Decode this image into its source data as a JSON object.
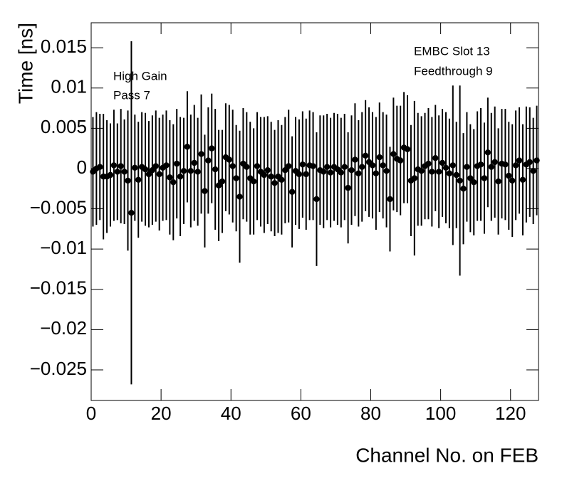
{
  "chart_data": {
    "type": "errorbar",
    "annotations": [
      "EMBC Slot 13",
      "Feedthrough 9",
      "High Gain",
      "Pass 7"
    ],
    "x_label": "Channel No. on FEB",
    "y_label": "Time [ns]",
    "x": [
      0.5,
      1.5,
      2.5,
      3.5,
      4.5,
      5.5,
      6.5,
      7.5,
      8.5,
      9.5,
      10.5,
      11.5,
      12.5,
      13.5,
      14.5,
      15.5,
      16.5,
      17.5,
      18.5,
      19.5,
      20.5,
      21.5,
      22.5,
      23.5,
      24.5,
      25.5,
      26.5,
      27.5,
      28.5,
      29.5,
      30.5,
      31.5,
      32.5,
      33.5,
      34.5,
      35.5,
      36.5,
      37.5,
      38.5,
      39.5,
      40.5,
      41.5,
      42.5,
      43.5,
      44.5,
      45.5,
      46.5,
      47.5,
      48.5,
      49.5,
      50.5,
      51.5,
      52.5,
      53.5,
      54.5,
      55.5,
      56.5,
      57.5,
      58.5,
      59.5,
      60.5,
      61.5,
      62.5,
      63.5,
      64.5,
      65.5,
      66.5,
      67.5,
      68.5,
      69.5,
      70.5,
      71.5,
      72.5,
      73.5,
      74.5,
      75.5,
      76.5,
      77.5,
      78.5,
      79.5,
      80.5,
      81.5,
      82.5,
      83.5,
      84.5,
      85.5,
      86.5,
      87.5,
      88.5,
      89.5,
      90.5,
      91.5,
      92.5,
      93.5,
      94.5,
      95.5,
      96.5,
      97.5,
      98.5,
      99.5,
      100.5,
      101.5,
      102.5,
      103.5,
      104.5,
      105.5,
      106.5,
      107.5,
      108.5,
      109.5,
      110.5,
      111.5,
      112.5,
      113.5,
      114.5,
      115.5,
      116.5,
      117.5,
      118.5,
      119.5,
      120.5,
      121.5,
      122.5,
      123.5,
      124.5,
      125.5,
      126.5,
      127.5
    ],
    "values": [
      -0.0004,
      0.0,
      0.0002,
      -0.001,
      -0.001,
      -0.0008,
      0.0004,
      -0.0004,
      0.0003,
      -0.0004,
      -0.0015,
      -0.0055,
      0.0001,
      -0.0014,
      0.0002,
      -0.0001,
      -0.0007,
      -0.0002,
      0.0003,
      -0.0007,
      0.0001,
      0.0004,
      -0.0011,
      -0.0017,
      0.0006,
      -0.001,
      -0.0003,
      0.0027,
      -0.0003,
      0.0007,
      -0.0004,
      0.0018,
      -0.0028,
      0.001,
      0.0025,
      -0.0001,
      -0.0021,
      -0.0016,
      0.0014,
      0.0011,
      0.0003,
      -0.0012,
      -0.0035,
      0.0006,
      0.0002,
      -0.0012,
      -0.0016,
      0.0003,
      -0.0004,
      -0.0008,
      -0.0002,
      -0.001,
      -0.0018,
      -0.001,
      -0.0014,
      -0.0002,
      0.0003,
      -0.0029,
      -0.0003,
      -0.0007,
      0.0005,
      -0.0007,
      0.0004,
      0.0003,
      -0.0038,
      -0.0002,
      -0.0004,
      0.0002,
      -0.0005,
      0.0002,
      -0.0001,
      -0.0005,
      0.0002,
      -0.0024,
      -0.0002,
      0.0011,
      -0.0006,
      0.0002,
      0.0016,
      0.0008,
      0.0004,
      -0.0006,
      0.0014,
      0.0004,
      -0.0003,
      -0.0038,
      0.0018,
      0.0012,
      0.001,
      0.0026,
      0.0024,
      -0.0015,
      -0.0012,
      -0.0001,
      -0.0003,
      0.0003,
      0.0006,
      -0.0004,
      0.0013,
      -0.0004,
      0.0007,
      0.0001,
      -0.0006,
      0.0004,
      -0.0008,
      -0.0015,
      -0.0025,
      0.0002,
      -0.0012,
      -0.0017,
      0.0003,
      0.0005,
      -0.0012,
      0.002,
      0.0002,
      0.0008,
      -0.0016,
      0.0006,
      0.0005,
      -0.0009,
      -0.0015,
      0.0004,
      0.001,
      -0.0014,
      0.0005,
      0.0008,
      -0.0003,
      0.001
    ],
    "errors": [
      0.0068,
      0.007,
      0.0066,
      0.0078,
      0.007,
      0.0064,
      0.0069,
      0.006,
      0.0071,
      0.0065,
      0.0087,
      0.0213,
      0.0066,
      0.0072,
      0.0068,
      0.007,
      0.0066,
      0.0068,
      0.0069,
      0.007,
      0.0066,
      0.0068,
      0.0071,
      0.0072,
      0.0068,
      0.0074,
      0.0066,
      0.0069,
      0.007,
      0.0072,
      0.0067,
      0.0074,
      0.007,
      0.0066,
      0.0068,
      0.0075,
      0.0069,
      0.0064,
      0.0067,
      0.0068,
      0.007,
      0.0066,
      0.0082,
      0.0069,
      0.0068,
      0.007,
      0.0066,
      0.0067,
      0.0068,
      0.0072,
      0.0067,
      0.0068,
      0.0066,
      0.007,
      0.0068,
      0.0066,
      0.007,
      0.0069,
      0.0067,
      0.0068,
      0.0066,
      0.0069,
      0.0068,
      0.0067,
      0.0083,
      0.0068,
      0.007,
      0.0066,
      0.0068,
      0.0067,
      0.0069,
      0.0068,
      0.0066,
      0.0069,
      0.0068,
      0.007,
      0.0066,
      0.0068,
      0.0069,
      0.0068,
      0.0066,
      0.007,
      0.0068,
      0.0066,
      0.007,
      0.0065,
      0.007,
      0.0066,
      0.0068,
      0.0069,
      0.0067,
      0.0069,
      0.0096,
      0.007,
      0.0068,
      0.0066,
      0.0069,
      0.0068,
      0.0066,
      0.007,
      0.0067,
      0.0069,
      0.0068,
      0.0099,
      0.0066,
      0.0118,
      0.0069,
      0.0068,
      0.0067,
      0.0066,
      0.0068,
      0.007,
      0.0069,
      0.0068,
      0.0067,
      0.0069,
      0.0066,
      0.0068,
      0.0069,
      0.0067,
      0.007,
      0.0068,
      0.0066,
      0.0069,
      0.0072,
      0.0068,
      0.0066,
      0.0068
    ],
    "color": "#000000",
    "xlim": [
      0,
      128
    ],
    "xticks": [
      0,
      20,
      40,
      60,
      80,
      100,
      120
    ],
    "ylim": [
      -0.0288,
      0.0181
    ],
    "yticks": [
      {
        "value": -0.025,
        "label": "−0.025"
      },
      {
        "value": -0.02,
        "label": "−0.02"
      },
      {
        "value": -0.015,
        "label": "−0.015"
      },
      {
        "value": -0.01,
        "label": "−0.01"
      },
      {
        "value": -0.005,
        "label": "−0.005"
      },
      0,
      0.005,
      0.01,
      0.015
    ],
    "grid": false
  }
}
